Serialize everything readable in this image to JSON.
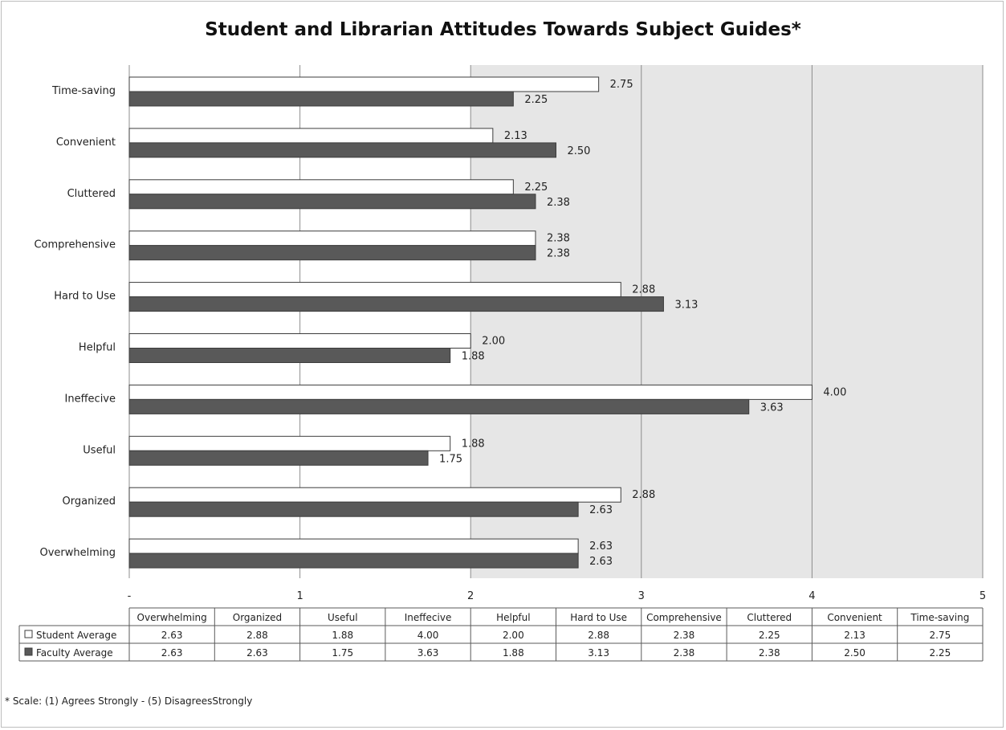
{
  "chart_data": {
    "type": "bar",
    "orientation": "horizontal",
    "title": "Student and Librarian Attitudes Towards Subject Guides*",
    "categories": [
      "Overwhelming",
      "Organized",
      "Useful",
      "Ineffecive",
      "Helpful",
      "Hard to Use",
      "Comprehensive",
      "Cluttered",
      "Convenient",
      "Time-saving"
    ],
    "series": [
      {
        "name": "Student Average",
        "values": [
          2.63,
          2.88,
          1.88,
          4.0,
          2.0,
          2.88,
          2.38,
          2.25,
          2.13,
          2.75
        ],
        "color": "#ffffff"
      },
      {
        "name": "Faculty Average",
        "values": [
          2.63,
          2.63,
          1.75,
          3.63,
          1.88,
          3.13,
          2.38,
          2.38,
          2.5,
          2.25
        ],
        "color": "#595959"
      }
    ],
    "data_labels": [
      [
        "2.63",
        "2.88",
        "1.88",
        "4.00",
        "2.00",
        "2.88",
        "2.38",
        "2.25",
        "2.13",
        "2.75"
      ],
      [
        "2.63",
        "2.63",
        "1.75",
        "3.63",
        "1.88",
        "3.13",
        "2.38",
        "2.38",
        "2.50",
        "2.25"
      ]
    ],
    "xlim": [
      0,
      5
    ],
    "x_ticks": [
      "-",
      "1",
      "2",
      "3",
      "4",
      "5"
    ],
    "grid": true,
    "shaded_region": [
      2,
      5
    ],
    "plot_background": "#e6e6e6",
    "data_table": true
  },
  "footnote": "* Scale: (1) Agrees Strongly - (5) DisagreesStrongly"
}
